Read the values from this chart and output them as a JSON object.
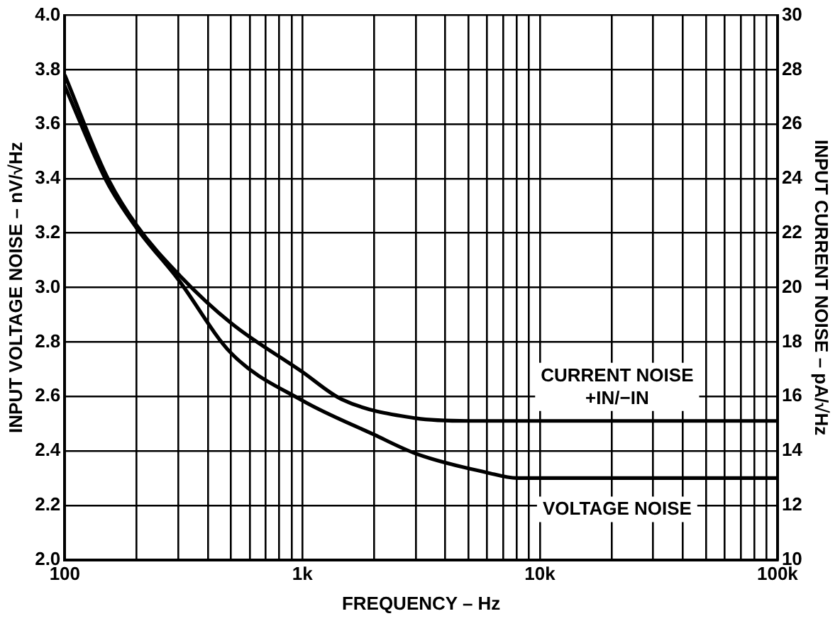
{
  "chart_data": {
    "type": "line",
    "xlabel": "FREQUENCY – Hz",
    "ylabel": "INPUT VOLTAGE NOISE – nV/√Hz",
    "y2label": "INPUT CURRENT NOISE – pA/√Hz",
    "log": "x",
    "grid": true,
    "legend": false,
    "marker": "none",
    "line_style": "solid",
    "xlim": [
      100,
      100000
    ],
    "xticks": [
      {
        "value": 100,
        "label": "100"
      },
      {
        "value": 200,
        "label": null
      },
      {
        "value": 300,
        "label": null
      },
      {
        "value": 400,
        "label": null
      },
      {
        "value": 500,
        "label": null
      },
      {
        "value": 600,
        "label": null
      },
      {
        "value": 700,
        "label": null
      },
      {
        "value": 800,
        "label": null
      },
      {
        "value": 900,
        "label": null
      },
      {
        "value": 1000,
        "label": "1k"
      },
      {
        "value": 2000,
        "label": null
      },
      {
        "value": 3000,
        "label": null
      },
      {
        "value": 4000,
        "label": null
      },
      {
        "value": 5000,
        "label": null
      },
      {
        "value": 6000,
        "label": null
      },
      {
        "value": 7000,
        "label": null
      },
      {
        "value": 8000,
        "label": null
      },
      {
        "value": 9000,
        "label": null
      },
      {
        "value": 10000,
        "label": "10k"
      },
      {
        "value": 20000,
        "label": null
      },
      {
        "value": 30000,
        "label": null
      },
      {
        "value": 40000,
        "label": null
      },
      {
        "value": 50000,
        "label": null
      },
      {
        "value": 60000,
        "label": null
      },
      {
        "value": 70000,
        "label": null
      },
      {
        "value": 80000,
        "label": null
      },
      {
        "value": 90000,
        "label": null
      },
      {
        "value": 100000,
        "label": "100k"
      }
    ],
    "ylim": [
      2.0,
      4.0
    ],
    "yticks": [
      {
        "value": 2.0,
        "label": "2.0"
      },
      {
        "value": 2.2,
        "label": "2.2"
      },
      {
        "value": 2.4,
        "label": "2.4"
      },
      {
        "value": 2.6,
        "label": "2.6"
      },
      {
        "value": 2.8,
        "label": "2.8"
      },
      {
        "value": 3.0,
        "label": "3.0"
      },
      {
        "value": 3.2,
        "label": "3.2"
      },
      {
        "value": 3.4,
        "label": "3.4"
      },
      {
        "value": 3.6,
        "label": "3.6"
      },
      {
        "value": 3.8,
        "label": "3.8"
      },
      {
        "value": 4.0,
        "label": "4.0"
      }
    ],
    "y2lim": [
      10,
      30
    ],
    "y2ticks": [
      10,
      12,
      14,
      16,
      18,
      20,
      22,
      24,
      26,
      28,
      30
    ],
    "series": [
      {
        "name": "CURRENT NOISE +IN/−IN",
        "color": "#000000",
        "axis": "y2",
        "x": [
          100,
          150,
          200,
          300,
          500,
          1000,
          1460,
          3000,
          5000,
          100000
        ],
        "values": [
          27.8,
          24.1,
          22.3,
          20.5,
          18.7,
          16.9,
          15.9,
          15.2,
          15.1,
          15.1
        ]
      },
      {
        "name": "VOLTAGE NOISE",
        "color": "#000000",
        "axis": "y",
        "x": [
          100,
          150,
          200,
          300,
          500,
          1000,
          2000,
          3000,
          6000,
          8000,
          100000
        ],
        "values": [
          3.74,
          3.39,
          3.22,
          3.03,
          2.76,
          2.585,
          2.46,
          2.39,
          2.32,
          2.3,
          2.3
        ]
      }
    ]
  }
}
